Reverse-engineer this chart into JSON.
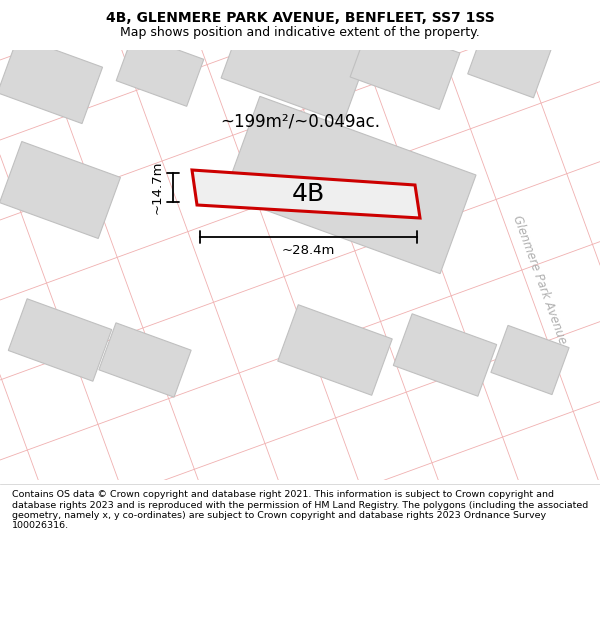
{
  "title": "4B, GLENMERE PARK AVENUE, BENFLEET, SS7 1SS",
  "subtitle": "Map shows position and indicative extent of the property.",
  "area_label": "~199m²/~0.049ac.",
  "width_label": "~28.4m",
  "height_label": "~14.7m",
  "property_label": "4B",
  "road_label": "Glenmere Park Avenue",
  "footer": "Contains OS data © Crown copyright and database right 2021. This information is subject to Crown copyright and database rights 2023 and is reproduced with the permission of HM Land Registry. The polygons (including the associated geometry, namely x, y co-ordinates) are subject to Crown copyright and database rights 2023 Ordnance Survey 100026316.",
  "bg_color": "#ffffff",
  "map_bg": "#ffffff",
  "property_fill": "#e8e8e8",
  "property_edge": "#cc0000",
  "boundary_color": "#f0b0b0",
  "building_fill": "#d8d8d8",
  "building_edge": "#c0c0c0",
  "title_fontsize": 10,
  "subtitle_fontsize": 9,
  "footer_fontsize": 6.8
}
